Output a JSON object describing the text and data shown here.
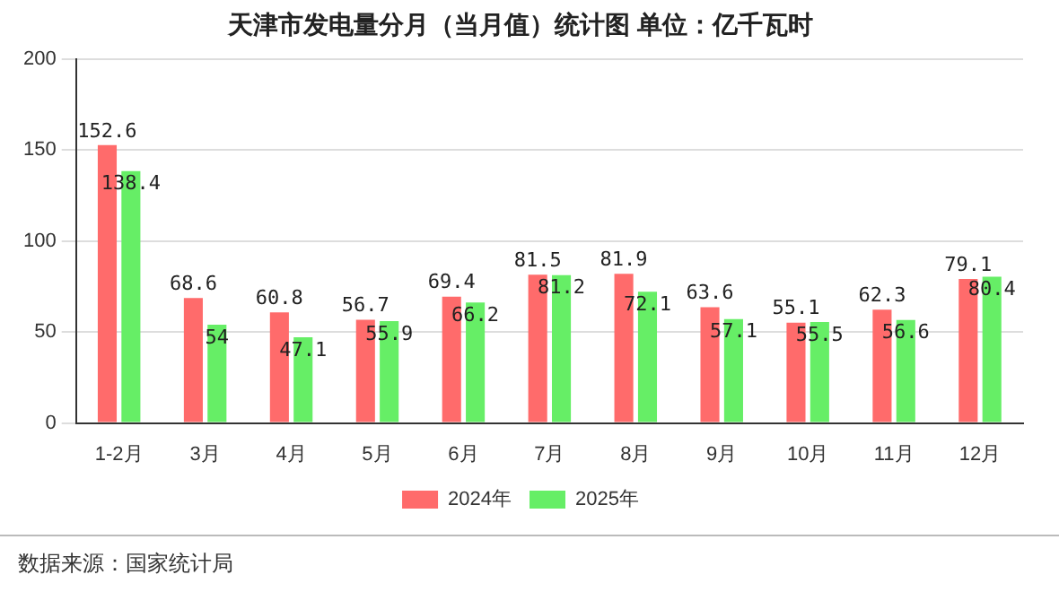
{
  "chart_data": {
    "type": "bar",
    "title": "天津市发电量分月（当月值）统计图 单位：亿千瓦时",
    "categories": [
      "1-2月",
      "3月",
      "4月",
      "5月",
      "6月",
      "7月",
      "8月",
      "9月",
      "10月",
      "11月",
      "12月"
    ],
    "series": [
      {
        "name": "2024年",
        "color": "#ff6b6b",
        "values": [
          152.6,
          68.6,
          60.8,
          56.7,
          69.4,
          81.5,
          81.9,
          63.6,
          55.1,
          62.3,
          79.1
        ]
      },
      {
        "name": "2025年",
        "color": "#66ee66",
        "values": [
          138.4,
          54,
          47.1,
          55.9,
          66.2,
          81.2,
          72.1,
          57.1,
          55.5,
          56.6,
          80.4
        ]
      }
    ],
    "ylim": [
      0,
      200
    ],
    "yticks": [
      0,
      50,
      100,
      150,
      200
    ],
    "grid": "y",
    "legend": "bottom",
    "data_labels": true,
    "annotations": [
      "数据来源：国家统计局"
    ]
  }
}
